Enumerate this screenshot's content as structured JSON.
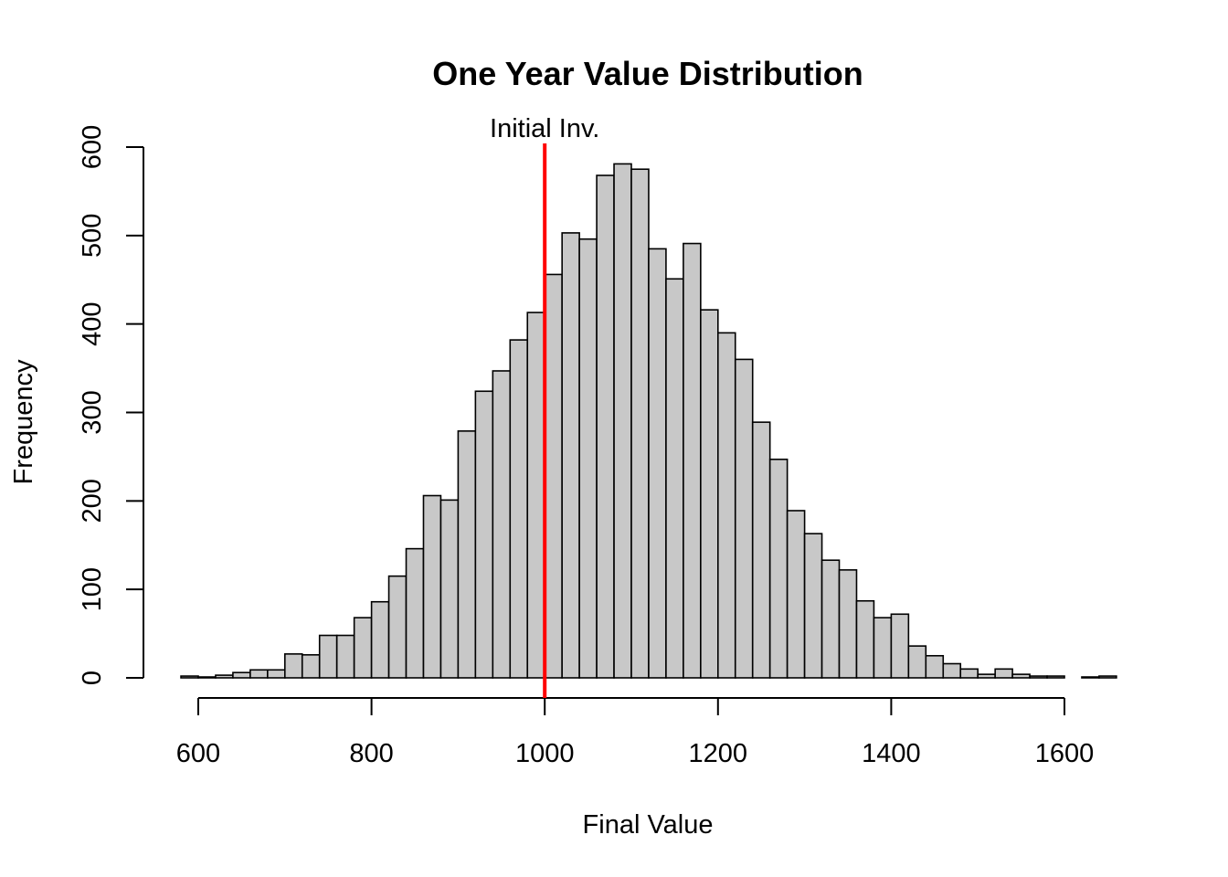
{
  "chart_data": {
    "type": "bar",
    "title": "One Year Value Distribution",
    "xlabel": "Final Value",
    "ylabel": "Frequency",
    "bin_width": 20,
    "bin_starts": [
      580,
      600,
      620,
      640,
      660,
      680,
      700,
      720,
      740,
      760,
      780,
      800,
      820,
      840,
      860,
      880,
      900,
      920,
      940,
      960,
      980,
      1000,
      1020,
      1040,
      1060,
      1080,
      1100,
      1120,
      1140,
      1160,
      1180,
      1200,
      1220,
      1240,
      1260,
      1280,
      1300,
      1320,
      1340,
      1360,
      1380,
      1400,
      1420,
      1440,
      1460,
      1480,
      1500,
      1520,
      1540,
      1560,
      1580,
      1600,
      1620,
      1640
    ],
    "values": [
      2,
      1,
      3,
      6,
      9,
      9,
      27,
      26,
      48,
      48,
      68,
      86,
      115,
      146,
      206,
      201,
      279,
      324,
      347,
      382,
      413,
      456,
      503,
      496,
      568,
      581,
      575,
      485,
      451,
      491,
      416,
      390,
      360,
      289,
      247,
      189,
      163,
      133,
      122,
      87,
      68,
      72,
      36,
      25,
      16,
      10,
      4,
      10,
      4,
      2,
      2,
      0,
      1,
      2
    ],
    "xlim": [
      580,
      1660
    ],
    "ylim": [
      0,
      600
    ],
    "x_ticks": [
      600,
      800,
      1000,
      1200,
      1400,
      1600
    ],
    "x_tick_labels": [
      "600",
      "800",
      "1000",
      "1200",
      "1400",
      "1600"
    ],
    "y_ticks": [
      0,
      100,
      200,
      300,
      400,
      500,
      600
    ],
    "y_tick_labels": [
      "0",
      "100",
      "200",
      "300",
      "400",
      "500",
      "600"
    ],
    "reference_line": {
      "x": 1000,
      "label": "Initial Inv.",
      "color": "#ff0000"
    },
    "bar_fill": "#c8c8c8",
    "grid": false,
    "legend": "none"
  }
}
